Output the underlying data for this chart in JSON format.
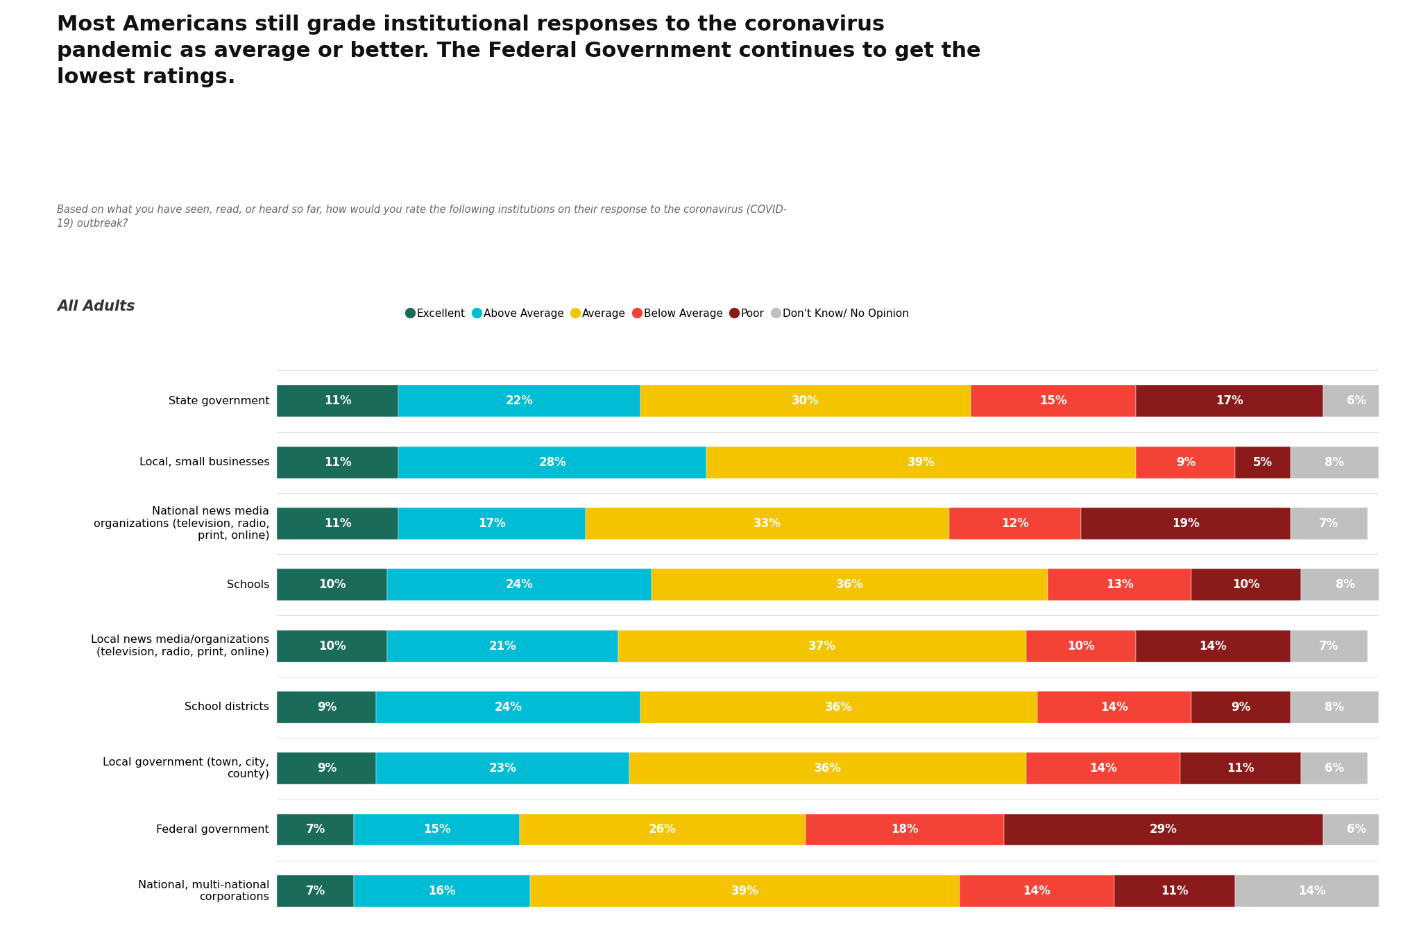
{
  "title": "Most Americans still grade institutional responses to the coronavirus\npandemic as average or better. The Federal Government continues to get the\nlowest ratings.",
  "subtitle": "Based on what you have seen, read, or heard so far, how would you rate the following institutions on their response to the coronavirus (COVID-\n19) outbreak?",
  "group_label": "All Adults",
  "categories": [
    "State government",
    "Local, small businesses",
    "National news media\norganizations (television, radio,\nprint, online)",
    "Schools",
    "Local news media/organizations\n(television, radio, print, online)",
    "School districts",
    "Local government (town, city,\ncounty)",
    "Federal government",
    "National, multi-national\ncorporations"
  ],
  "legend_labels": [
    "Excellent",
    "Above Average",
    "Average",
    "Below Average",
    "Poor",
    "Don't Know/ No Opinion"
  ],
  "colors": [
    "#1a6b5a",
    "#00bcd4",
    "#f5c400",
    "#f44336",
    "#8b1a1a",
    "#c0c0c0"
  ],
  "data": [
    [
      11,
      22,
      30,
      15,
      17,
      6
    ],
    [
      11,
      28,
      39,
      9,
      5,
      8
    ],
    [
      11,
      17,
      33,
      12,
      19,
      7
    ],
    [
      10,
      24,
      36,
      13,
      10,
      8
    ],
    [
      10,
      21,
      37,
      10,
      14,
      7
    ],
    [
      9,
      24,
      36,
      14,
      9,
      8
    ],
    [
      9,
      23,
      36,
      14,
      11,
      6
    ],
    [
      7,
      15,
      26,
      18,
      29,
      6
    ],
    [
      7,
      16,
      39,
      14,
      11,
      14
    ]
  ],
  "background_color": "#ffffff",
  "bar_height": 0.52,
  "title_fontsize": 22,
  "subtitle_fontsize": 10.5,
  "label_fontsize": 11.5,
  "bar_label_fontsize": 12,
  "legend_fontsize": 11
}
